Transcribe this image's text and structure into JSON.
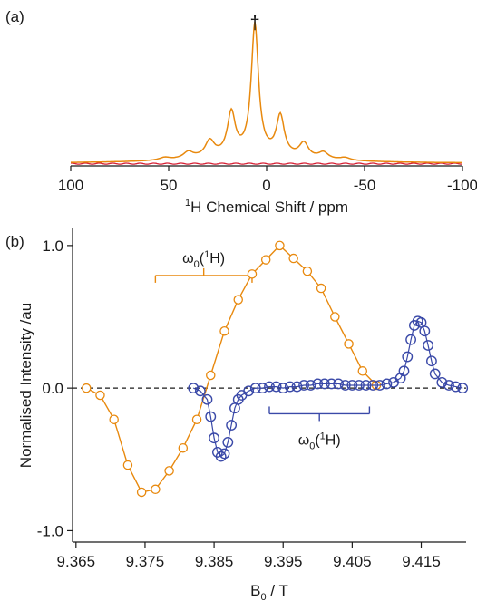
{
  "chart_data": [
    {
      "panel_label": "(a)",
      "type": "line",
      "xlabel_sup": "1",
      "xlabel_main": "H Chemical Shift / ppm",
      "xlim": [
        100,
        -100
      ],
      "x_ticks": [
        100,
        50,
        0,
        -50,
        -100
      ],
      "x_tick_labels": [
        "100",
        "50",
        "0",
        "-50",
        "-100"
      ],
      "annotation": "†",
      "annotation_x": 6,
      "colors": {
        "orange": "#E8890E",
        "red": "#D62035"
      },
      "series": [
        {
          "color": "orange",
          "peaks": [
            {
              "x": 6,
              "amp": 1.0,
              "width": 2.2
            },
            {
              "x": 18,
              "amp": 0.32,
              "width": 2.4
            },
            {
              "x": -7,
              "amp": 0.3,
              "width": 2.4
            },
            {
              "x": 29,
              "amp": 0.12,
              "width": 2.8
            },
            {
              "x": -19,
              "amp": 0.11,
              "width": 2.8
            },
            {
              "x": 40,
              "amp": 0.05,
              "width": 3.0
            },
            {
              "x": -29,
              "amp": 0.05,
              "width": 3.0
            },
            {
              "x": 52,
              "amp": 0.02,
              "width": 3.2
            },
            {
              "x": -40,
              "amp": 0.02,
              "width": 3.2
            },
            {
              "x": 8,
              "amp": 0.06,
              "width": 32
            }
          ]
        },
        {
          "color": "red",
          "level": 0.01
        }
      ]
    },
    {
      "panel_label": "(b)",
      "type": "scatter",
      "xlabel_main": "B",
      "xlabel_sub": "0",
      "xlabel_tail": " / T",
      "ylabel": "Normalised Intensity /au",
      "xlim": [
        9.3645,
        9.4215
      ],
      "ylim": [
        -1.08,
        1.12
      ],
      "x_ticks": [
        9.365,
        9.375,
        9.385,
        9.395,
        9.405,
        9.415
      ],
      "x_tick_labels": [
        "9.365",
        "9.375",
        "9.385",
        "9.395",
        "9.405",
        "9.415"
      ],
      "y_ticks": [
        -1.0,
        0.0,
        1.0
      ],
      "y_tick_labels": [
        "-1.0",
        "0.0",
        "1.0"
      ],
      "zero_line": true,
      "colors": {
        "orange": "#E8890E",
        "blue": "#3A49A8"
      },
      "orange_series": {
        "x": [
          9.3665,
          9.3685,
          9.3705,
          9.3725,
          9.3745,
          9.3765,
          9.3785,
          9.3805,
          9.3825,
          9.3845,
          9.3865,
          9.3885,
          9.3905,
          9.3925,
          9.3945,
          9.3965,
          9.3985,
          9.4005,
          9.4025,
          9.4045,
          9.4065,
          9.4085
        ],
        "y": [
          0.0,
          -0.05,
          -0.22,
          -0.54,
          -0.73,
          -0.71,
          -0.58,
          -0.42,
          -0.22,
          0.09,
          0.4,
          0.62,
          0.8,
          0.9,
          1.0,
          0.91,
          0.82,
          0.7,
          0.5,
          0.31,
          0.12,
          0.02
        ]
      },
      "blue_series": {
        "x": [
          9.382,
          9.383,
          9.384,
          9.3845,
          9.385,
          9.3855,
          9.386,
          9.3865,
          9.387,
          9.3875,
          9.388,
          9.3885,
          9.389,
          9.39,
          9.391,
          9.392,
          9.393,
          9.394,
          9.395,
          9.396,
          9.397,
          9.398,
          9.399,
          9.4,
          9.401,
          9.402,
          9.403,
          9.404,
          9.405,
          9.406,
          9.407,
          9.408,
          9.409,
          9.41,
          9.411,
          9.412,
          9.4125,
          9.413,
          9.4135,
          9.414,
          9.4145,
          9.415,
          9.4155,
          9.416,
          9.4165,
          9.417,
          9.418,
          9.419,
          9.42,
          9.421
        ],
        "y": [
          0.0,
          -0.02,
          -0.08,
          -0.2,
          -0.35,
          -0.45,
          -0.48,
          -0.46,
          -0.38,
          -0.26,
          -0.14,
          -0.08,
          -0.05,
          -0.02,
          0.0,
          0.0,
          0.01,
          0.01,
          0.0,
          0.01,
          0.01,
          0.02,
          0.02,
          0.03,
          0.03,
          0.03,
          0.03,
          0.02,
          0.02,
          0.02,
          0.02,
          0.02,
          0.02,
          0.03,
          0.04,
          0.07,
          0.12,
          0.22,
          0.34,
          0.44,
          0.47,
          0.46,
          0.4,
          0.3,
          0.19,
          0.1,
          0.04,
          0.02,
          0.01,
          0.0
        ]
      },
      "bracket_orange": {
        "x1": 9.3765,
        "x2": 9.3905,
        "y": 0.79,
        "label": "ω",
        "label_sub": "0",
        "label_tail": "(",
        "label_sup": "1",
        "label_end": "H)"
      },
      "bracket_blue": {
        "x1": 9.393,
        "x2": 9.4075,
        "y": -0.18,
        "label": "ω",
        "label_sub": "0",
        "label_tail": "(",
        "label_sup": "1",
        "label_end": "H)"
      }
    }
  ]
}
